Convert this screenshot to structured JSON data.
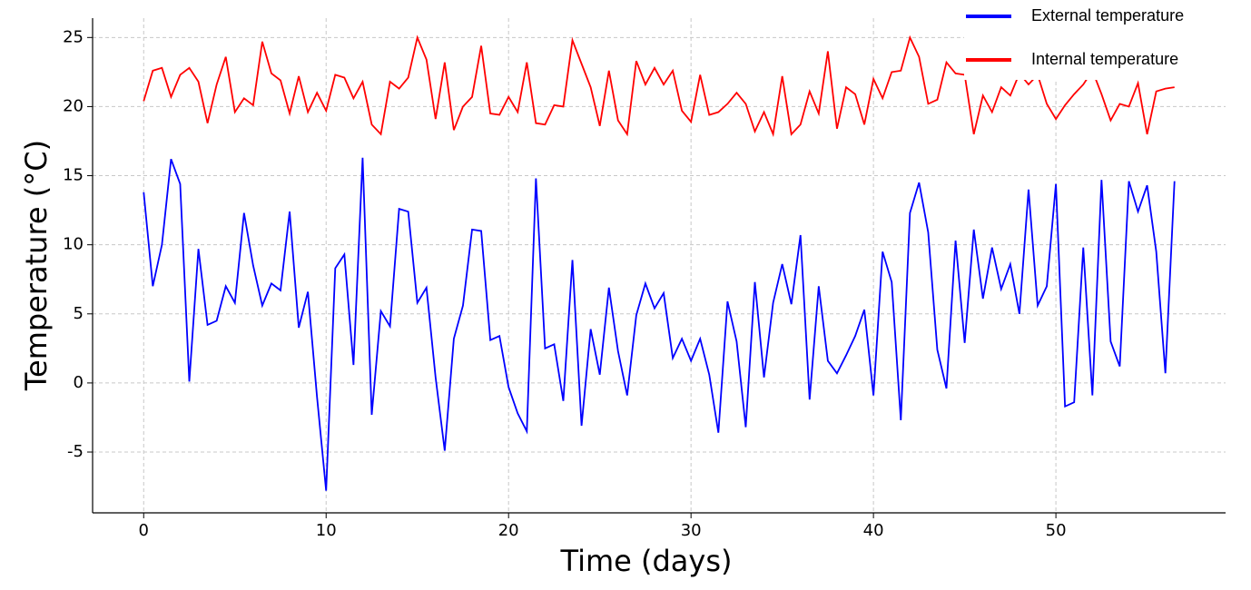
{
  "chart_data": {
    "type": "line",
    "xlabel": "Time (days)",
    "ylabel": "Temperature (°C)",
    "x": [
      0,
      0.5,
      1,
      1.5,
      2,
      2.5,
      3,
      3.5,
      4,
      4.5,
      5,
      5.5,
      6,
      6.5,
      7,
      7.5,
      8,
      8.5,
      9,
      9.5,
      10,
      10.5,
      11,
      11.5,
      12,
      12.5,
      13,
      13.5,
      14,
      14.5,
      15,
      15.5,
      16,
      16.5,
      17,
      17.5,
      18,
      18.5,
      19,
      19.5,
      20,
      20.5,
      21,
      21.5,
      22,
      22.5,
      23,
      23.5,
      24,
      24.5,
      25,
      25.5,
      26,
      26.5,
      27,
      27.5,
      28,
      28.5,
      29,
      29.5,
      30,
      30.5,
      31,
      31.5,
      32,
      32.5,
      33,
      33.5,
      34,
      34.5,
      35,
      35.5,
      36,
      36.5,
      37,
      37.5,
      38,
      38.5,
      39,
      39.5,
      40,
      40.5,
      41,
      41.5,
      42,
      42.5,
      43,
      43.5,
      44,
      44.5,
      45,
      45.5,
      46,
      46.5,
      47,
      47.5,
      48,
      48.5,
      49,
      49.5,
      50,
      50.5,
      51,
      51.5,
      52,
      52.5,
      53,
      53.5,
      54,
      54.5,
      55,
      55.5,
      56,
      56.5
    ],
    "series": [
      {
        "name": "External temperature",
        "color": "#0000ff",
        "values": [
          13.8,
          7,
          10,
          16.2,
          14.4,
          0.1,
          9.7,
          4.2,
          4.5,
          7,
          5.8,
          12.3,
          8.5,
          5.6,
          7.2,
          6.7,
          12.4,
          4,
          6.6,
          -1,
          -7.8,
          8.3,
          9.3,
          1.3,
          16.3,
          -2.3,
          5.2,
          4.1,
          12.6,
          12.4,
          5.8,
          6.9,
          0.4,
          -4.9,
          3.2,
          5.6,
          11.1,
          11,
          3.1,
          3.4,
          -0.3,
          -2.2,
          -3.5,
          14.8,
          2.5,
          2.8,
          -1.3,
          8.9,
          -3.1,
          3.9,
          0.6,
          6.9,
          2.3,
          -0.9,
          4.9,
          7.2,
          5.4,
          6.5,
          1.8,
          3.2,
          1.6,
          3.2,
          0.6,
          -3.6,
          5.9,
          3,
          -3.2,
          7.3,
          0.4,
          5.8,
          8.6,
          5.7,
          10.7,
          -1.2,
          7,
          1.6,
          0.7,
          2,
          3.4,
          5.3,
          -0.9,
          9.5,
          7.3,
          -2.7,
          12.3,
          14.5,
          10.9,
          2.4,
          -0.4,
          10.3,
          2.9,
          11.1,
          6.1,
          9.8,
          6.8,
          8.6,
          5,
          14,
          5.6,
          7,
          14.4,
          -1.7,
          -1.4,
          9.8,
          -0.9,
          14.7,
          3,
          1.2,
          14.6,
          12.4,
          14.3,
          9.5,
          0.7,
          14.6
        ]
      },
      {
        "name": "Internal temperature",
        "color": "#ff0000",
        "values": [
          20.4,
          22.6,
          22.8,
          20.7,
          22.3,
          22.8,
          21.8,
          18.8,
          21.6,
          23.6,
          19.6,
          20.6,
          20.1,
          24.7,
          22.4,
          21.9,
          19.5,
          22.2,
          19.6,
          21,
          19.7,
          22.3,
          22.1,
          20.6,
          21.8,
          18.7,
          18,
          21.8,
          21.3,
          22.1,
          25,
          23.4,
          19.1,
          23.2,
          18.3,
          20,
          20.7,
          24.4,
          19.5,
          19.4,
          20.7,
          19.6,
          23.2,
          18.8,
          18.7,
          20.1,
          20,
          24.8,
          23.1,
          21.4,
          18.6,
          22.6,
          19,
          18,
          23.3,
          21.6,
          22.8,
          21.6,
          22.6,
          19.7,
          18.9,
          22.3,
          19.4,
          19.6,
          20.2,
          21,
          20.2,
          18.2,
          19.6,
          18,
          22.2,
          18,
          18.7,
          21.1,
          19.5,
          24,
          18.4,
          21.4,
          20.9,
          18.7,
          22,
          20.6,
          22.5,
          22.6,
          25,
          23.6,
          20.2,
          20.5,
          23.2,
          22.4,
          22.3,
          18,
          20.8,
          19.6,
          21.4,
          20.8,
          22.4,
          21.6,
          22.3,
          20.2,
          19.1,
          20.1,
          20.9,
          21.6,
          22.6,
          20.9,
          19,
          20.2,
          20,
          21.7,
          18,
          21.1,
          21.3,
          21.4
        ]
      }
    ],
    "xlim": [
      -2.8,
      59.3
    ],
    "ylim": [
      -9.4,
      26.4
    ],
    "xticks": [
      0,
      10,
      20,
      30,
      40,
      50
    ],
    "yticks": [
      -5,
      0,
      5,
      10,
      15,
      20,
      25
    ],
    "grid": true,
    "legend": "upper right"
  }
}
